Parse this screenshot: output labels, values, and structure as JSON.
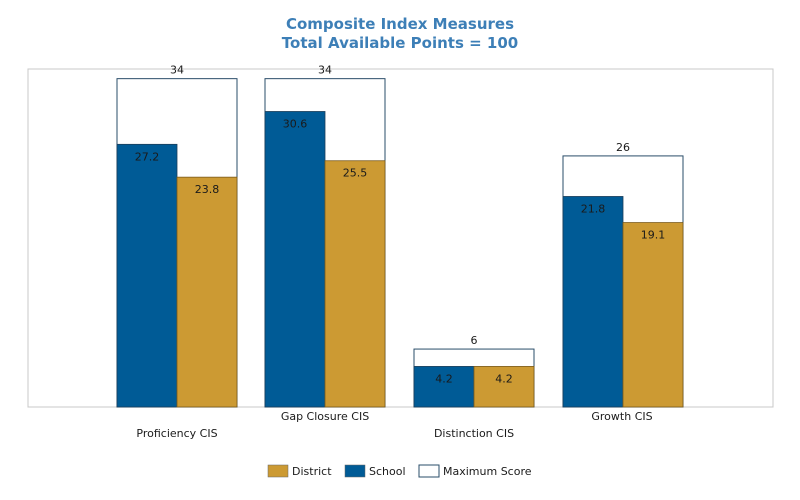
{
  "chart_data": {
    "type": "bar",
    "title": "Composite Index Measures",
    "subtitle": "Total Available Points = 100",
    "categories": [
      "Proficiency CIS",
      "Gap Closure CIS",
      "Distinction CIS",
      "Growth CIS"
    ],
    "series": [
      {
        "name": "School",
        "values": [
          27.2,
          30.6,
          4.2,
          21.8
        ]
      },
      {
        "name": "District",
        "values": [
          23.8,
          25.5,
          4.2,
          19.1
        ]
      },
      {
        "name": "Maximum Score",
        "values": [
          34,
          34,
          6,
          26
        ]
      }
    ],
    "value_labels": {
      "school": [
        "27.2",
        "30.6",
        "4.2",
        "21.8"
      ],
      "district": [
        "23.8",
        "25.5",
        "4.2",
        "19.1"
      ],
      "max": [
        "34",
        "34",
        "6",
        "26"
      ]
    },
    "ylim": [
      0,
      35
    ],
    "grid": false,
    "legend_position": "bottom",
    "legend": [
      "District",
      "School",
      "Maximum Score"
    ],
    "colors": {
      "school": "#005b96",
      "district": "#cc9a33",
      "max_fill": "#ffffff",
      "max_stroke": "#2a4d69",
      "title": "#3d7fb7",
      "frame": "#c8c8c8"
    }
  }
}
